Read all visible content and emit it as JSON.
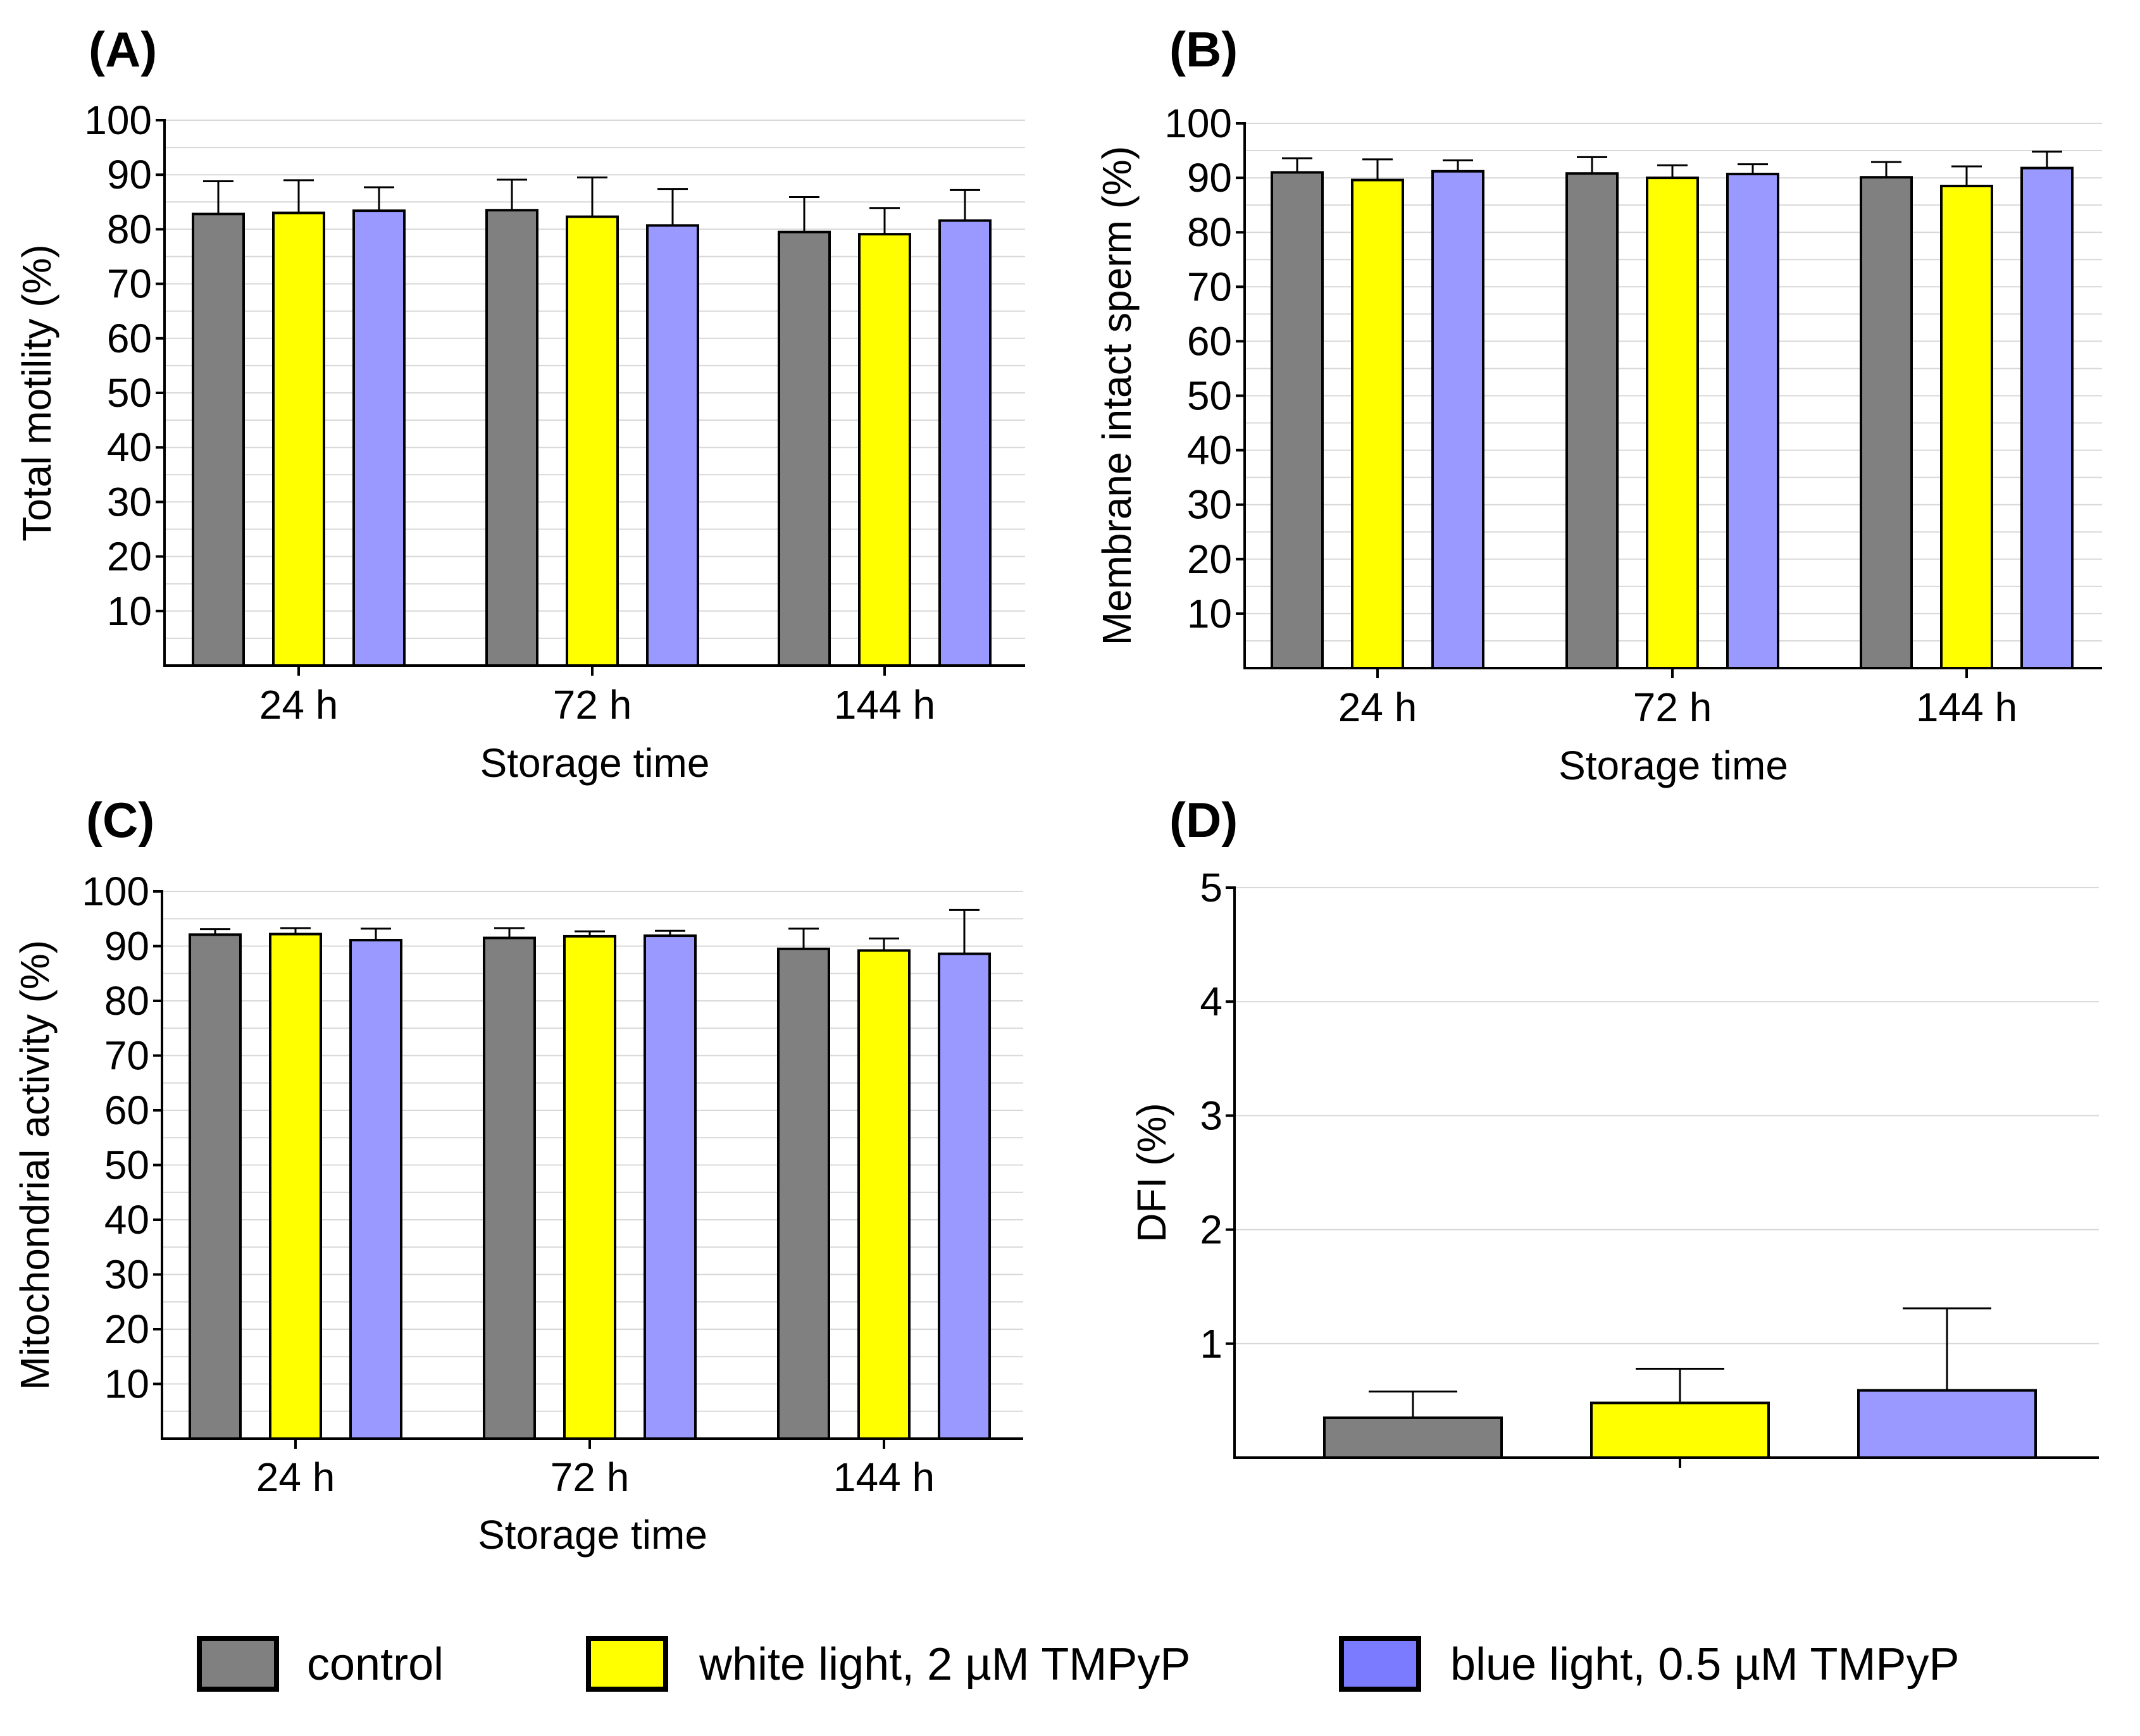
{
  "colors": {
    "control": "#808080",
    "white_light": "#ffff00",
    "blue_light": "#9999ff",
    "legend_blue": "#7b7bff",
    "grid": "#d8d8d8"
  },
  "legend": [
    {
      "key": "control",
      "label": "control"
    },
    {
      "key": "white_light",
      "label": "white light, 2 µM TMPyP"
    },
    {
      "key": "blue_light",
      "label": "blue light, 0.5 µM TMPyP"
    }
  ],
  "chart_data": [
    {
      "panel": "(A)",
      "type": "bar",
      "title": "",
      "xlabel": "Storage time",
      "ylabel": "Total motility (%)",
      "ylim": [
        0,
        100
      ],
      "yticks": [
        10,
        20,
        30,
        40,
        50,
        60,
        70,
        80,
        90,
        100
      ],
      "grid": true,
      "categories": [
        "24 h",
        "72 h",
        "144 h"
      ],
      "series": [
        {
          "name": "control",
          "key": "control",
          "values": [
            82.8,
            83.5,
            79.5
          ],
          "errors": [
            6.0,
            5.6,
            6.4
          ]
        },
        {
          "name": "white light, 2 µM TMPyP",
          "key": "white_light",
          "values": [
            83.0,
            82.3,
            79.1
          ],
          "errors": [
            6.0,
            7.2,
            4.8
          ]
        },
        {
          "name": "blue light, 0.5 µM TMPyP",
          "key": "blue_light",
          "values": [
            83.4,
            80.7,
            81.6
          ],
          "errors": [
            4.3,
            6.7,
            5.6
          ]
        }
      ]
    },
    {
      "panel": "(B)",
      "type": "bar",
      "title": "",
      "xlabel": "Storage time",
      "ylabel": "Membrane intact sperm (%)",
      "ylim": [
        0,
        100
      ],
      "yticks": [
        10,
        20,
        30,
        40,
        50,
        60,
        70,
        80,
        90,
        100
      ],
      "grid": true,
      "categories": [
        "24 h",
        "72 h",
        "144 h"
      ],
      "series": [
        {
          "name": "control",
          "key": "control",
          "values": [
            91.0,
            90.8,
            90.1
          ],
          "errors": [
            2.6,
            3.0,
            2.8
          ]
        },
        {
          "name": "white light, 2 µM TMPyP",
          "key": "white_light",
          "values": [
            89.6,
            90.0,
            88.5
          ],
          "errors": [
            3.8,
            2.3,
            3.6
          ]
        },
        {
          "name": "blue light, 0.5 µM TMPyP",
          "key": "blue_light",
          "values": [
            91.2,
            90.7,
            91.8
          ],
          "errors": [
            2.0,
            1.8,
            3.0
          ]
        }
      ]
    },
    {
      "panel": "(C)",
      "type": "bar",
      "title": "",
      "xlabel": "Storage time",
      "ylabel": "Mitochondrial activity (%)",
      "ylim": [
        0,
        100
      ],
      "yticks": [
        10,
        20,
        30,
        40,
        50,
        60,
        70,
        80,
        90,
        100
      ],
      "grid": true,
      "categories": [
        "24 h",
        "72 h",
        "144 h"
      ],
      "series": [
        {
          "name": "control",
          "key": "control",
          "values": [
            92.1,
            91.5,
            89.5
          ],
          "errors": [
            1.0,
            1.8,
            3.7
          ]
        },
        {
          "name": "white light, 2 µM TMPyP",
          "key": "white_light",
          "values": [
            92.2,
            91.8,
            89.2
          ],
          "errors": [
            1.1,
            0.9,
            2.2
          ]
        },
        {
          "name": "blue light, 0.5 µM TMPyP",
          "key": "blue_light",
          "values": [
            91.1,
            91.9,
            88.6
          ],
          "errors": [
            2.1,
            0.9,
            8.0
          ]
        }
      ]
    },
    {
      "panel": "(D)",
      "type": "bar",
      "title": "",
      "xlabel": "",
      "ylabel": "DFI (%)",
      "ylim": [
        0,
        5
      ],
      "yticks": [
        1,
        2,
        3,
        4,
        5
      ],
      "grid": true,
      "categories": [
        ""
      ],
      "series": [
        {
          "name": "control",
          "key": "control",
          "values": [
            0.35
          ],
          "errors": [
            0.23
          ]
        },
        {
          "name": "white light, 2 µM TMPyP",
          "key": "white_light",
          "values": [
            0.48
          ],
          "errors": [
            0.3
          ]
        },
        {
          "name": "blue light, 0.5 µM TMPyP",
          "key": "blue_light",
          "values": [
            0.59
          ],
          "errors": [
            0.72
          ]
        }
      ]
    }
  ]
}
